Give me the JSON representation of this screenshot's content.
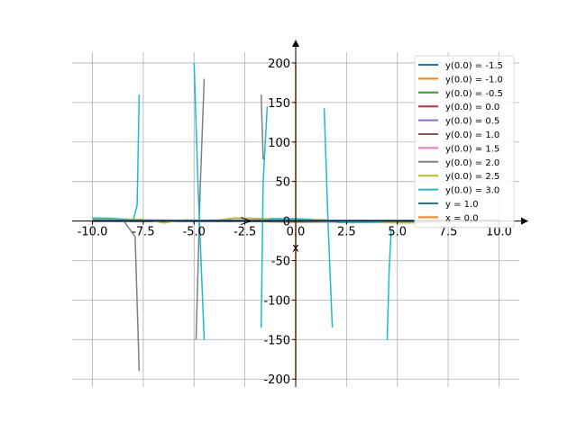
{
  "chart_data": {
    "type": "line",
    "xlabel": "x",
    "ylabel": "",
    "xlim": [
      -11,
      11
    ],
    "ylim": [
      -210,
      225
    ],
    "grid": true,
    "legend_placement": "upper-right",
    "xticks": [
      -10.0,
      -7.5,
      -5.0,
      -2.5,
      0.0,
      2.5,
      5.0,
      7.5,
      10.0
    ],
    "xtick_labels": [
      "-10.0",
      "-7.5",
      "-5.0",
      "-2.5",
      "0.0",
      "2.5",
      "5.0",
      "7.5",
      "10.0"
    ],
    "yticks": [
      -200,
      -150,
      -100,
      -50,
      0,
      50,
      100,
      150,
      200
    ],
    "ytick_labels": [
      "-200",
      "-150",
      "-100",
      "-50",
      "0",
      "50",
      "100",
      "150",
      "200"
    ],
    "series": [
      {
        "name": "y(0.0) = -1.5",
        "color": "#1f77b4",
        "segments": [
          [
            [
              -10,
              -0.5
            ],
            [
              -7.5,
              -0.6
            ],
            [
              -5,
              -0.5
            ],
            [
              -2.5,
              -0.5
            ],
            [
              0,
              -1.5
            ],
            [
              2.5,
              -1.0
            ],
            [
              5,
              -0.5
            ],
            [
              7.5,
              -0.4
            ],
            [
              10,
              -0.3
            ]
          ]
        ]
      },
      {
        "name": "y(0.0) = -1.0",
        "color": "#ff7f0e",
        "segments": [
          [
            [
              -10,
              -0.3
            ],
            [
              -7.5,
              -0.4
            ],
            [
              -5,
              -0.4
            ],
            [
              -2.5,
              -0.3
            ],
            [
              0,
              -1.0
            ],
            [
              2.5,
              -0.7
            ],
            [
              5,
              -0.3
            ],
            [
              7.5,
              -0.3
            ],
            [
              10,
              -0.2
            ]
          ]
        ]
      },
      {
        "name": "y(0.0) = -0.5",
        "color": "#2ca02c",
        "segments": [
          [
            [
              -10,
              -0.1
            ],
            [
              -7.5,
              -0.2
            ],
            [
              -5,
              -0.2
            ],
            [
              -2.5,
              -0.1
            ],
            [
              0,
              -0.5
            ],
            [
              2.5,
              -0.3
            ],
            [
              5,
              -0.1
            ],
            [
              7.5,
              -0.1
            ],
            [
              10,
              -0.1
            ]
          ]
        ]
      },
      {
        "name": "y(0.0) = 0.0",
        "color": "#d62728",
        "segments": [
          [
            [
              -10,
              0
            ],
            [
              -5,
              0
            ],
            [
              0,
              0
            ],
            [
              5,
              0
            ],
            [
              10,
              0
            ]
          ]
        ]
      },
      {
        "name": "y(0.0) = 0.5",
        "color": "#9467bd",
        "segments": [
          [
            [
              -10,
              0.2
            ],
            [
              -7.5,
              0.3
            ],
            [
              -5,
              0.2
            ],
            [
              -2.5,
              0.3
            ],
            [
              0,
              0.5
            ],
            [
              2.5,
              -0.8
            ],
            [
              5,
              -0.6
            ],
            [
              7.5,
              -0.3
            ],
            [
              10,
              0.1
            ]
          ]
        ]
      },
      {
        "name": "y(0.0) = 1.0",
        "color": "#8c564b",
        "segments": [
          [
            [
              -10,
              0.8
            ],
            [
              -7.5,
              1.0
            ],
            [
              -5,
              0.8
            ],
            [
              -2.5,
              1.2
            ],
            [
              0,
              1.0
            ],
            [
              2.5,
              -1.5
            ],
            [
              5,
              -1.2
            ],
            [
              7.5,
              -0.5
            ],
            [
              10,
              0.2
            ]
          ]
        ]
      },
      {
        "name": "y(0.0) = 1.5",
        "color": "#e377c2",
        "segments": [
          [
            [
              -10,
              1.2
            ],
            [
              -7.5,
              1.5
            ],
            [
              -5,
              1.0
            ],
            [
              -2.5,
              1.6
            ],
            [
              0,
              1.5
            ],
            [
              2.5,
              -2.0
            ],
            [
              5,
              -1.8
            ],
            [
              7.5,
              -0.6
            ],
            [
              10,
              0.3
            ]
          ]
        ]
      },
      {
        "name": "y(0.0) = 2.0",
        "color": "#7f7f7f",
        "segments": [
          [
            [
              -10,
              2.0
            ],
            [
              -8.5,
              1.5
            ],
            [
              -7.9,
              -20
            ],
            [
              -7.7,
              -190
            ]
          ],
          [
            [
              -4.9,
              -150
            ],
            [
              -4.7,
              40
            ],
            [
              -4.5,
              180
            ]
          ],
          [
            [
              -1.7,
              160
            ],
            [
              -1.6,
              78
            ]
          ],
          [
            [
              -1.5,
              1.5
            ],
            [
              0,
              2.0
            ],
            [
              2.5,
              -1.5
            ],
            [
              5,
              -1.0
            ],
            [
              7.5,
              0.5
            ],
            [
              10,
              1.0
            ]
          ]
        ]
      },
      {
        "name": "y(0.0) = 2.5",
        "color": "#bcbd22",
        "segments": [
          [
            [
              -10,
              3.0
            ],
            [
              -8.5,
              2.5
            ],
            [
              -7.5,
              2.0
            ],
            [
              -6.5,
              -2.5
            ],
            [
              -5.5,
              1.5
            ],
            [
              -4,
              0.5
            ],
            [
              -3,
              4.0
            ],
            [
              -2.2,
              3.5
            ],
            [
              -1.5,
              3.0
            ],
            [
              0,
              2.5
            ],
            [
              1.5,
              1.5
            ],
            [
              2.5,
              -1.0
            ],
            [
              4,
              -2.0
            ],
            [
              5.5,
              -2.5
            ],
            [
              7,
              -1.5
            ],
            [
              8.5,
              0.5
            ],
            [
              10,
              2.0
            ]
          ]
        ]
      },
      {
        "name": "y(0.0) = 3.0",
        "color": "#17becf",
        "segments": [
          [
            [
              -10,
              4.0
            ],
            [
              -9,
              3.5
            ],
            [
              -8.5,
              2.0
            ],
            [
              -8.0,
              0.5
            ],
            [
              -7.8,
              20
            ],
            [
              -7.7,
              160
            ]
          ],
          [
            [
              -5.0,
              200
            ],
            [
              -4.8,
              40
            ],
            [
              -4.5,
              -150
            ]
          ],
          [
            [
              -1.7,
              -135
            ],
            [
              -1.6,
              50
            ],
            [
              -1.4,
              145
            ]
          ],
          [
            [
              -1.3,
              3.0
            ],
            [
              0,
              3.0
            ],
            [
              0.8,
              2.0
            ]
          ],
          [
            [
              1.4,
              143
            ],
            [
              1.6,
              -10
            ],
            [
              1.8,
              -135
            ]
          ],
          [
            [
              2.0,
              -2.0
            ],
            [
              3.5,
              -1.5
            ],
            [
              4.3,
              -1.0
            ]
          ],
          [
            [
              4.5,
              -150
            ],
            [
              4.6,
              -60
            ],
            [
              4.7,
              -10
            ]
          ]
        ]
      },
      {
        "name": "y = 1.0",
        "color": "#1f77b4",
        "segments": [
          [
            [
              -10,
              1.0
            ],
            [
              10,
              1.0
            ]
          ]
        ]
      },
      {
        "name": "x = 0.0",
        "color": "#ff7f0e",
        "segments": [
          [
            [
              0,
              -200
            ],
            [
              0,
              200
            ]
          ]
        ]
      }
    ]
  }
}
